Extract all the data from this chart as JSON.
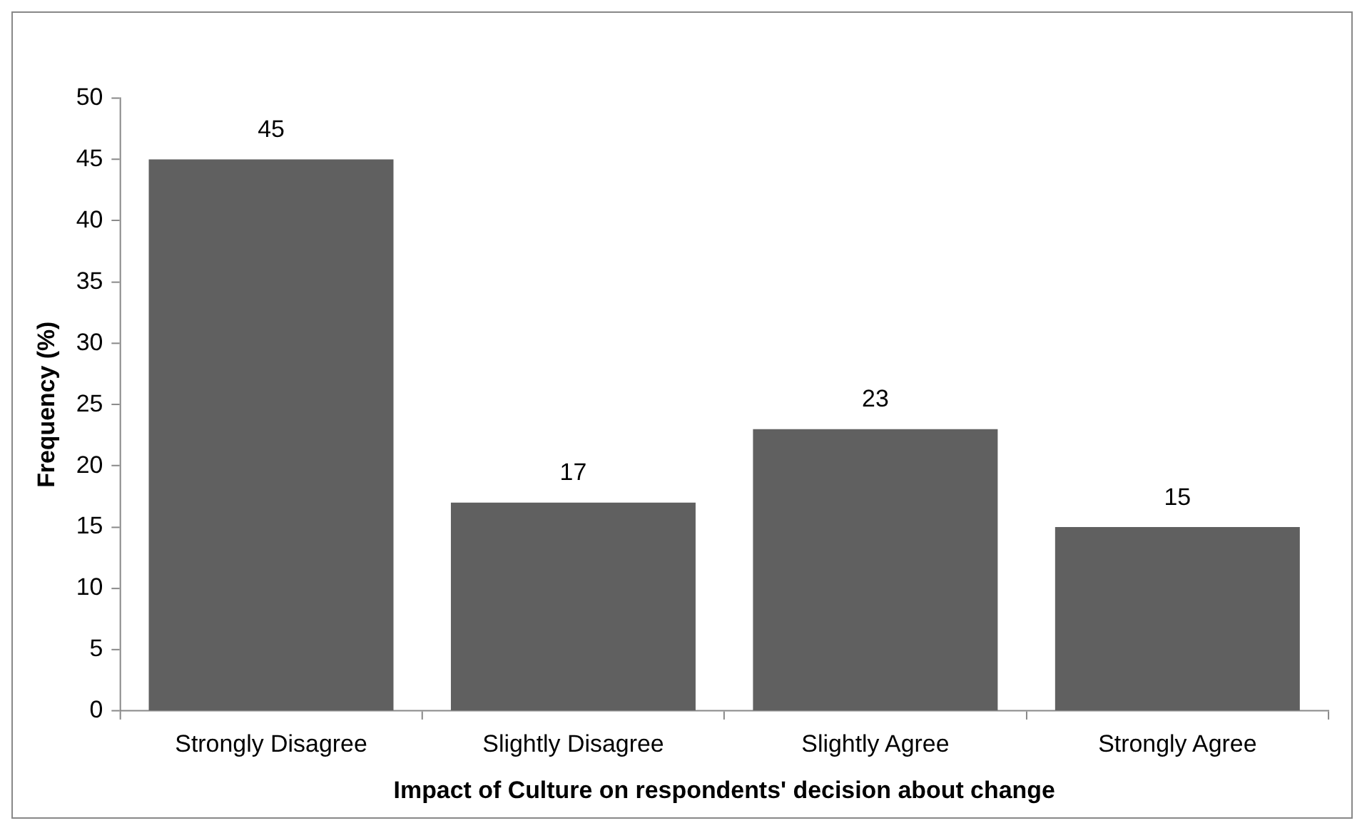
{
  "chart_data": {
    "type": "bar",
    "xlabel": "Impact of Culture on respondents' decision about change",
    "ylabel": "Frequency (%)",
    "categories": [
      "Strongly Disagree",
      "Slightly Disagree",
      "Slightly Agree",
      "Strongly Agree"
    ],
    "values": [
      45,
      17,
      23,
      15
    ],
    "color": "#606060",
    "ylim": [
      0,
      50
    ],
    "yticks": [
      0,
      5,
      10,
      15,
      20,
      25,
      30,
      35,
      40,
      45,
      50
    ],
    "grid": false,
    "legend": false,
    "data_labels": true
  }
}
